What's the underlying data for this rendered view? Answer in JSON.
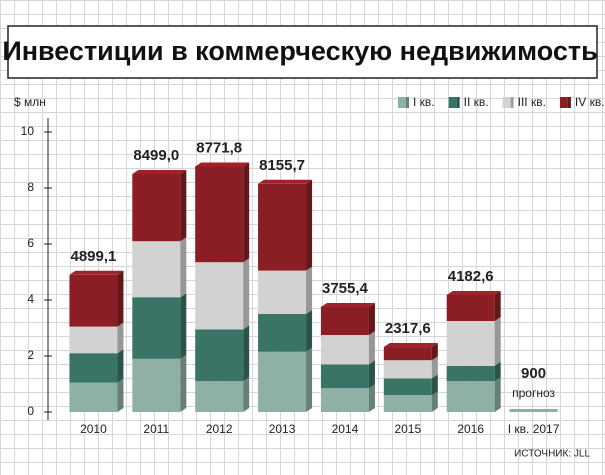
{
  "chart_data": {
    "type": "stacked_bar",
    "title": "Инвестиции в коммерческую недвижимость",
    "y_label": "$ млн",
    "source": "ИСТОЧНИК: JLL",
    "categories": [
      "2010",
      "2011",
      "2012",
      "2013",
      "2014",
      "2015",
      "2016",
      "I кв. 2017"
    ],
    "series": [
      {
        "name": "I кв.",
        "color": "#8fb0a4",
        "values": [
          1.05,
          1.9,
          1.1,
          2.15,
          0.85,
          0.6,
          1.1,
          null
        ]
      },
      {
        "name": "II кв.",
        "color": "#3a7466",
        "values": [
          1.05,
          2.2,
          1.85,
          1.35,
          0.85,
          0.6,
          0.55,
          null
        ]
      },
      {
        "name": "III кв.",
        "color": "#d2d2d2",
        "values": [
          0.95,
          2.0,
          2.4,
          1.55,
          1.05,
          0.65,
          1.6,
          null
        ]
      },
      {
        "name": "IV кв.",
        "color": "#8b1e24",
        "values": [
          1.85,
          2.4,
          3.42,
          3.1,
          1.0,
          0.47,
          0.93,
          null
        ]
      }
    ],
    "totals": {
      "values": [
        4.8991,
        8.499,
        8.7718,
        8.1557,
        3.7554,
        2.3176,
        4.1826,
        0.9
      ],
      "value_labels": [
        "4899,1",
        "8499,0",
        "8771,8",
        "8155,7",
        "3755,4",
        "2317,6",
        "4182,6",
        "900"
      ]
    },
    "annotation": "прогноз",
    "ylim": [
      0,
      10
    ],
    "yticks": [
      0,
      2,
      4,
      6,
      8,
      10
    ],
    "grid": true,
    "legend": "top-right"
  }
}
